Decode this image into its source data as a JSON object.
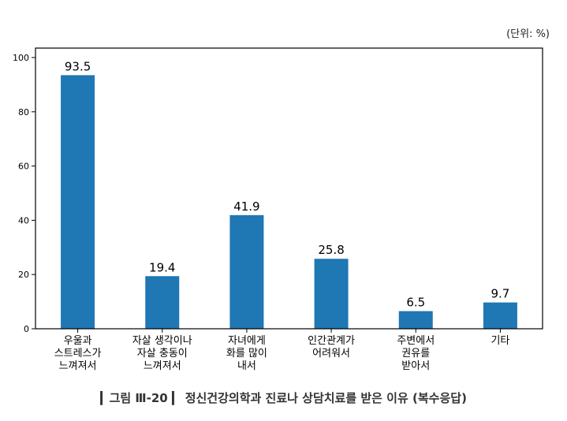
{
  "unit_label": "(단위: %)",
  "caption": "▎그림 Ⅲ-20 ▎ 정신건강의학과 진료나 상담치료를 받은 이유 (복수응답)",
  "chart_data": {
    "type": "bar",
    "categories": [
      [
        "우울과",
        "스트레스가",
        "느껴져서"
      ],
      [
        "자살 생각이나",
        "자살 충동이",
        "느껴져서"
      ],
      [
        "자녀에게",
        "화를 많이",
        "내서"
      ],
      [
        "인간관계가",
        "어려워서"
      ],
      [
        "주변에서",
        "권유를",
        "받아서"
      ],
      [
        "기타"
      ]
    ],
    "values": [
      93.5,
      19.4,
      41.9,
      25.8,
      6.5,
      9.7
    ],
    "data_labels": [
      "93.5",
      "19.4",
      "41.9",
      "25.8",
      "6.5",
      "9.7"
    ],
    "ylim": [
      0,
      100
    ],
    "yticks": [
      "0",
      "20",
      "40",
      "60",
      "80",
      "100"
    ],
    "bar_color": "#1f77b4",
    "grid": false,
    "title": "",
    "xlabel": "",
    "ylabel": ""
  }
}
